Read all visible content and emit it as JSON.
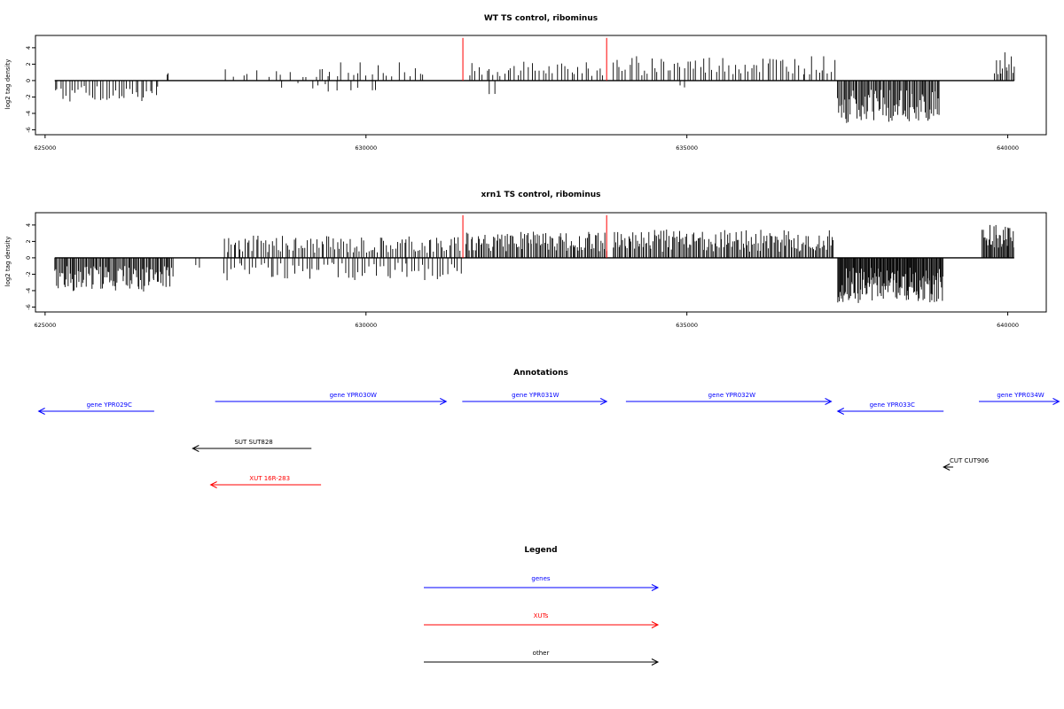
{
  "colors": {
    "gene": "#0000ff",
    "xut": "#ff0000",
    "other": "#000000",
    "feature_line": "#ff0000",
    "signal": "#000000"
  },
  "chart_data": [
    {
      "type": "bar",
      "title": "WT TS control, ribominus",
      "ylabel": "log2 tag density",
      "xlim": [
        624850,
        640600
      ],
      "ylim": [
        -6.6,
        5.5
      ],
      "x_ticks": [
        "625000",
        "630000",
        "635000",
        "640000"
      ],
      "y_ticks": [
        "4",
        "2",
        "0",
        "-2",
        "-4",
        "-6"
      ],
      "red_markers_x": [
        631510,
        633750
      ],
      "segments": [
        {
          "from": 625150,
          "to": 626800,
          "step": 45,
          "sign": -1,
          "amp": 2.3,
          "seed": 11
        },
        {
          "from": 626900,
          "to": 626920,
          "step": 20,
          "sign": 1,
          "amp": 2.2,
          "seed": 12
        },
        {
          "from": 627800,
          "to": 629400,
          "step": 130,
          "sign": 1,
          "amp": 1.3,
          "seed": 13
        },
        {
          "from": 628700,
          "to": 629400,
          "step": 200,
          "sign": -1,
          "amp": 1.0,
          "seed": 14
        },
        {
          "from": 629300,
          "to": 630900,
          "step": 80,
          "sign": 1,
          "amp": 2.0,
          "seed": 15
        },
        {
          "from": 629300,
          "to": 630200,
          "step": 150,
          "sign": -1,
          "amp": 1.2,
          "seed": 16
        },
        {
          "from": 631600,
          "to": 633700,
          "step": 55,
          "sign": 1,
          "amp": 2.0,
          "seed": 17
        },
        {
          "from": 631900,
          "to": 632000,
          "step": 100,
          "sign": -1,
          "amp": 1.6,
          "seed": 18
        },
        {
          "from": 633850,
          "to": 637300,
          "step": 50,
          "sign": 1,
          "amp": 2.6,
          "seed": 19
        },
        {
          "from": 634900,
          "to": 635000,
          "step": 100,
          "sign": -1,
          "amp": 0.9,
          "seed": 20
        },
        {
          "from": 637350,
          "to": 638950,
          "step": 18,
          "sign": -1,
          "amp": 4.5,
          "seed": 21
        },
        {
          "from": 639800,
          "to": 640100,
          "step": 25,
          "sign": 1,
          "amp": 3.0,
          "seed": 22
        }
      ]
    },
    {
      "type": "bar",
      "title": "xrn1 TS control, ribominus",
      "ylabel": "log2 tag density",
      "xlim": [
        624850,
        640600
      ],
      "ylim": [
        -6.6,
        5.5
      ],
      "x_ticks": [
        "625000",
        "630000",
        "635000",
        "640000"
      ],
      "y_ticks": [
        "4",
        "2",
        "0",
        "-2",
        "-4",
        "-6"
      ],
      "red_markers_x": [
        631510,
        633750
      ],
      "segments": [
        {
          "from": 625150,
          "to": 627000,
          "step": 18,
          "sign": -1,
          "amp": 3.6,
          "seed": 31
        },
        {
          "from": 627350,
          "to": 627400,
          "step": 50,
          "sign": -1,
          "amp": 3.5,
          "seed": 32
        },
        {
          "from": 627800,
          "to": 631500,
          "step": 35,
          "sign": 1,
          "amp": 2.4,
          "seed": 33
        },
        {
          "from": 627800,
          "to": 631500,
          "step": 55,
          "sign": -1,
          "amp": 2.4,
          "seed": 34
        },
        {
          "from": 631550,
          "to": 633750,
          "step": 22,
          "sign": 1,
          "amp": 2.8,
          "seed": 35
        },
        {
          "from": 633850,
          "to": 637300,
          "step": 22,
          "sign": 1,
          "amp": 3.0,
          "seed": 36
        },
        {
          "from": 637350,
          "to": 639000,
          "step": 12,
          "sign": -1,
          "amp": 4.8,
          "seed": 37
        },
        {
          "from": 639600,
          "to": 640100,
          "step": 15,
          "sign": 1,
          "amp": 3.6,
          "seed": 38
        }
      ]
    }
  ],
  "annotations": {
    "title": "Annotations",
    "features": [
      {
        "label": "gene YPR029C",
        "type": "gene",
        "start": 624900,
        "end": 626700,
        "dir": "left",
        "row": 1,
        "label_x": 626000
      },
      {
        "label": "gene YPR030W",
        "type": "gene",
        "start": 627650,
        "end": 631250,
        "dir": "right",
        "row": 0,
        "label_x": 629800
      },
      {
        "label": "gene YPR031W",
        "type": "gene",
        "start": 631500,
        "end": 633750,
        "dir": "right",
        "row": 0,
        "label_x": 632640
      },
      {
        "label": "gene YPR032W",
        "type": "gene",
        "start": 634050,
        "end": 637250,
        "dir": "right",
        "row": 0,
        "label_x": 635700
      },
      {
        "label": "gene YPR033C",
        "type": "gene",
        "start": 637350,
        "end": 639000,
        "dir": "left",
        "row": 1,
        "label_x": 638200
      },
      {
        "label": "gene YPR034W",
        "type": "gene",
        "start": 639550,
        "end": 640800,
        "dir": "right",
        "row": 0,
        "label_x": 640200
      },
      {
        "label": "SUT SUT828",
        "type": "other",
        "start": 627300,
        "end": 629150,
        "dir": "left",
        "row": 2,
        "label_x": 628250
      },
      {
        "label": "XUT 16R-283",
        "type": "xut",
        "start": 627580,
        "end": 629300,
        "dir": "left",
        "row": 3,
        "label_x": 628500
      },
      {
        "label": "CUT CUT906",
        "type": "other",
        "start": 639000,
        "end": 639150,
        "dir": "left",
        "row": 4,
        "label_x": 639400
      }
    ]
  },
  "legend": {
    "title": "Legend",
    "items": [
      {
        "label": "genes",
        "type": "gene"
      },
      {
        "label": "XUTs",
        "type": "xut"
      },
      {
        "label": "other",
        "type": "other"
      }
    ]
  }
}
